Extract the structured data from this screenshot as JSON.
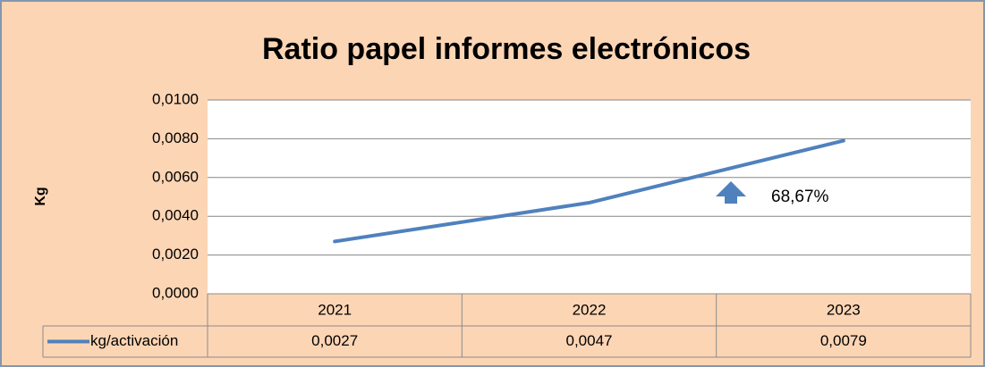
{
  "chart_data": {
    "type": "line",
    "title": "Ratio papel informes electrónicos",
    "y_label": "Kg",
    "categories": [
      "2021",
      "2022",
      "2023"
    ],
    "series": [
      {
        "name": "kg/activación",
        "color": "#4f81bd",
        "values": [
          0.0027,
          0.0047,
          0.0079
        ],
        "value_labels": [
          "0,0027",
          "0,0047",
          "0,0079"
        ]
      }
    ],
    "ylim": [
      0,
      0.01
    ],
    "yticks": [
      {
        "value": 0,
        "label": "0,0000"
      },
      {
        "value": 0.002,
        "label": "0,0020"
      },
      {
        "value": 0.004,
        "label": "0,0040"
      },
      {
        "value": 0.006,
        "label": "0,0060"
      },
      {
        "value": 0.008,
        "label": "0,0080"
      },
      {
        "value": 0.01,
        "label": "0,0100"
      }
    ],
    "grid": true,
    "annotation": "68,67%"
  }
}
